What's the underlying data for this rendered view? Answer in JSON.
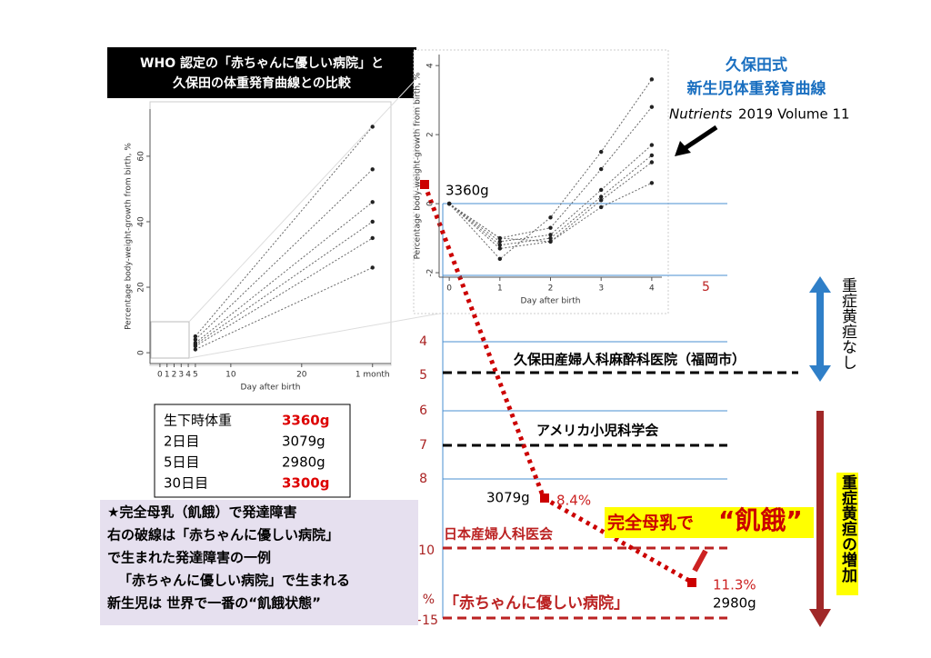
{
  "title_box": {
    "lines": [
      "WHO 認定の「赤ちゃんに優しい病院」と",
      "久保田の体重発育曲線との比較"
    ]
  },
  "kubota_title": {
    "lines": [
      "久保田式",
      "新生児体重発育曲線"
    ]
  },
  "citation": {
    "journal": "Nutrients",
    "rest": "2019 Volume 11"
  },
  "left_chart": {
    "y_label": "Percentage body-weight-growth from birth, %",
    "x_label": "Day after birth",
    "xlim": [
      -1.4,
      32.6
    ],
    "ylim": [
      -3.3,
      74.4
    ],
    "xticks": [
      0,
      1,
      2,
      3,
      4,
      5,
      10,
      20,
      {
        "value": 30,
        "label": "1 month"
      }
    ],
    "yticks": [
      0,
      20,
      40,
      60
    ],
    "x": [
      5,
      30
    ],
    "series": [
      {
        "values": [
          5,
          69
        ]
      },
      {
        "values": [
          4,
          56
        ]
      },
      {
        "values": [
          3,
          46
        ]
      },
      {
        "values": [
          2.5,
          40
        ]
      },
      {
        "values": [
          2,
          35
        ]
      },
      {
        "values": [
          1,
          26
        ]
      }
    ]
  },
  "right_chart": {
    "y_label": "Percentage body-weight-growth from birth, %",
    "x_label": "Day after birth",
    "xlim": [
      -0.2,
      4.2
    ],
    "ylim": [
      -2.13,
      4.32
    ],
    "xticks": [
      0,
      1,
      2,
      3,
      4
    ],
    "yticks": [
      -2,
      0,
      2,
      4
    ],
    "x": [
      0,
      1,
      2,
      3,
      4
    ],
    "series": [
      {
        "values": [
          0,
          -1.6,
          -0.4,
          1.5,
          3.6
        ]
      },
      {
        "values": [
          0,
          -1.0,
          -0.7,
          1.0,
          2.8
        ]
      },
      {
        "values": [
          0,
          -1.1,
          -0.9,
          0.4,
          1.7
        ]
      },
      {
        "values": [
          0,
          -1.2,
          -1.0,
          0.2,
          1.4
        ]
      },
      {
        "values": [
          0,
          -1.3,
          -1.1,
          0.1,
          1.2
        ]
      },
      {
        "values": [
          0,
          -1.0,
          -1.1,
          -0.1,
          0.6
        ]
      }
    ]
  },
  "birth_label": "3360g",
  "scale_labels": [
    "5",
    "4",
    "5",
    "6",
    "7",
    "8",
    "10",
    "%",
    "−15"
  ],
  "hospitals": [
    "久保田産婦人科麻酔科医院（福岡市）",
    "アメリカ小児科学会",
    "日本産婦人科医会",
    "「赤ちゃんに優しい病院」"
  ],
  "table": {
    "rows": [
      [
        "生下時体重",
        "3360g"
      ],
      [
        "2日目",
        "3079g"
      ],
      [
        "5日目",
        "2980g"
      ],
      [
        "30日目",
        "3300g"
      ]
    ]
  },
  "note": {
    "lines": [
      "★完全母乳（飢餓）で発達障害",
      "右の破線は「赤ちゃんに優しい病院」",
      "で生まれた発達障害の一例",
      "「赤ちゃんに優しい病院」で生まれる",
      "新生児は 世界で一番の“飢餓状態”"
    ]
  },
  "labels": {
    "w2": "3079g",
    "p2": "8.4%",
    "starve1": "完全母乳で",
    "starve2": "“飢餓”",
    "p5": "11.3%",
    "w5": "2980g"
  },
  "side": {
    "no_jaundice": "重症黄疸なし",
    "more_jaundice": "重症黄疸の増加"
  }
}
